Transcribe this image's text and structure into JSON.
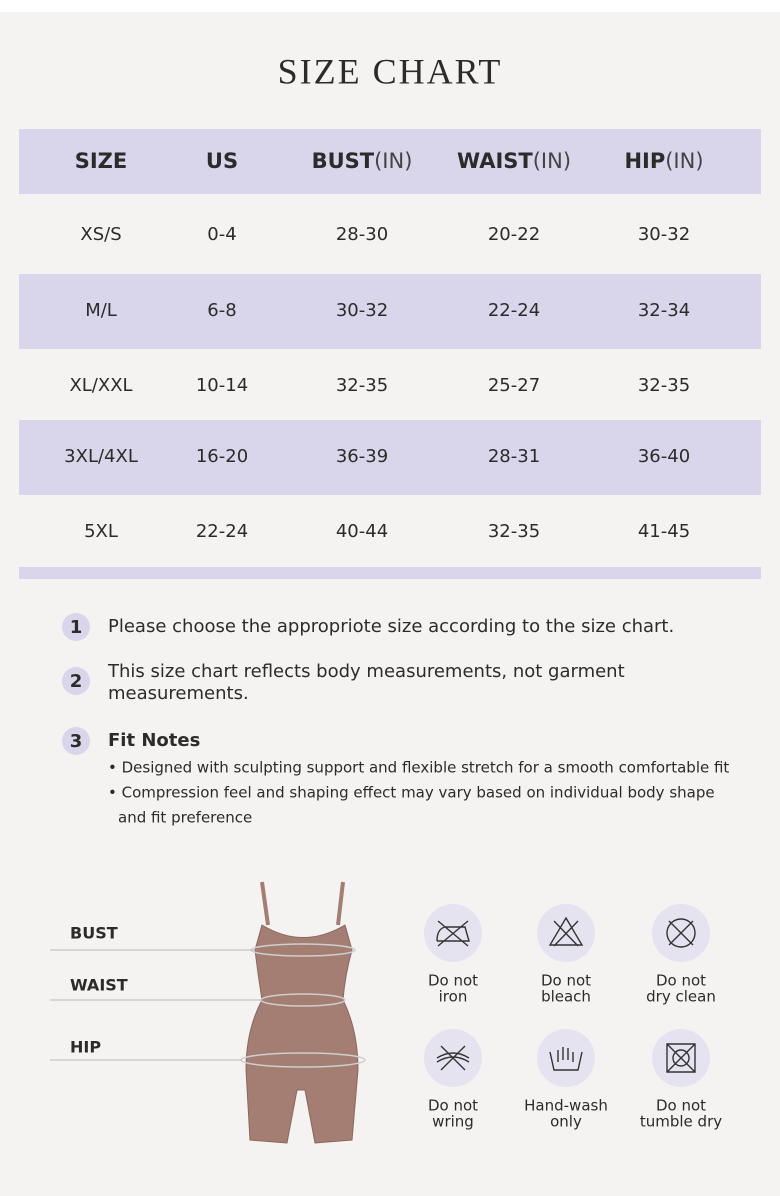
{
  "title": "SIZE CHART",
  "table": {
    "header": [
      {
        "label": "SIZE"
      },
      {
        "label": "US"
      },
      {
        "label": "BUST",
        "unit": "(IN)"
      },
      {
        "label": "WAIST",
        "unit": "(IN)"
      },
      {
        "label": "HIP",
        "unit": "(IN)"
      }
    ],
    "rows": [
      [
        "XS/S",
        "0-4",
        "28-30",
        "20-22",
        "30-32"
      ],
      [
        "M/L",
        "6-8",
        "30-32",
        "22-24",
        "32-34"
      ],
      [
        "XL/XXL",
        "10-14",
        "32-35",
        "25-27",
        "32-35"
      ],
      [
        "3XL/4XL",
        "16-20",
        "36-39",
        "28-31",
        "36-40"
      ],
      [
        "5XL",
        "22-24",
        "40-44",
        "32-35",
        "41-45"
      ]
    ]
  },
  "notes": [
    {
      "number": "1",
      "text": "Please choose the appropriote size according to the size chart."
    },
    {
      "number": "2",
      "lines": [
        "This size chart reflects body measurements, not garment",
        "measurements."
      ]
    },
    {
      "number": "3",
      "title": "Fit Notes",
      "bullets": [
        "• Designed with sculpting support and flexible stretch for a smooth comfortable fit",
        "• Compression feel and shaping effect may vary based on individual body shape",
        "and fit preference"
      ]
    }
  ],
  "diagram": {
    "labels": [
      "BUST",
      "WAIST",
      "HIP"
    ]
  },
  "care": [
    {
      "lines": [
        "Do not",
        "iron"
      ]
    },
    {
      "lines": [
        "Do not",
        "bleach"
      ]
    },
    {
      "lines": [
        "Do not",
        "dry clean"
      ]
    },
    {
      "lines": [
        "Do not",
        "wring"
      ]
    },
    {
      "lines": [
        "Hand-wash",
        "only"
      ]
    },
    {
      "lines": [
        "Do not",
        "tumble dry"
      ]
    }
  ]
}
